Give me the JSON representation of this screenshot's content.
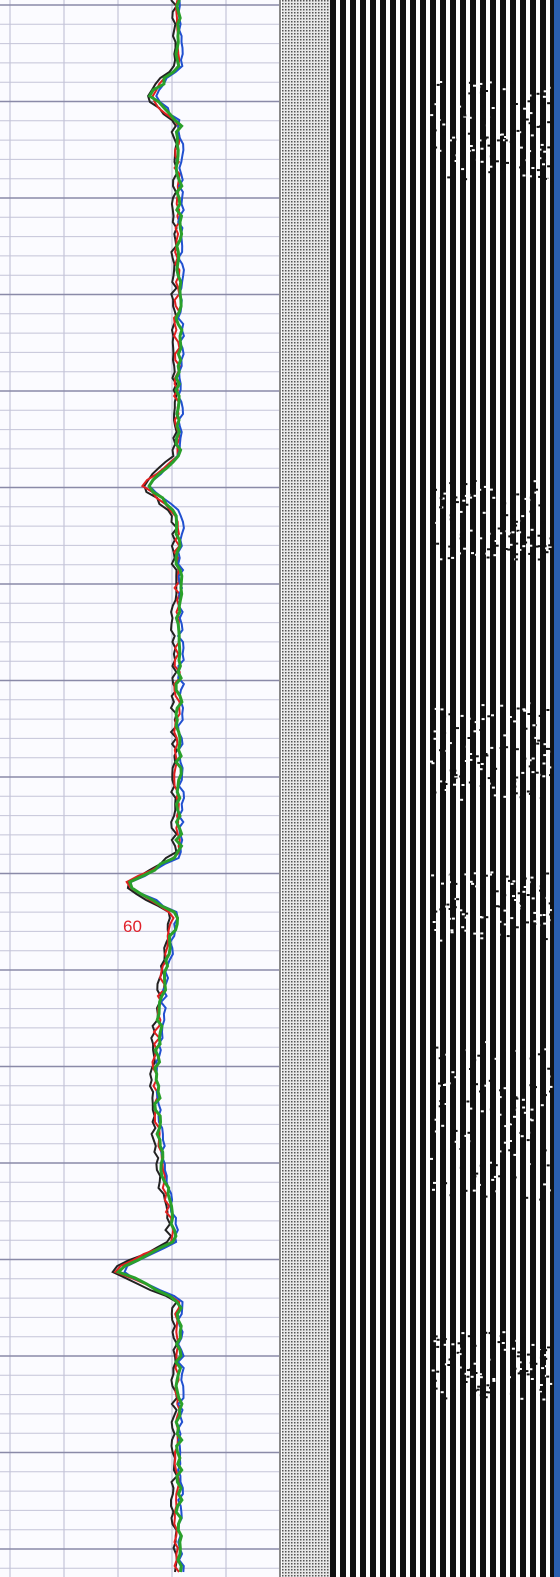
{
  "depth_label": "60"
}
